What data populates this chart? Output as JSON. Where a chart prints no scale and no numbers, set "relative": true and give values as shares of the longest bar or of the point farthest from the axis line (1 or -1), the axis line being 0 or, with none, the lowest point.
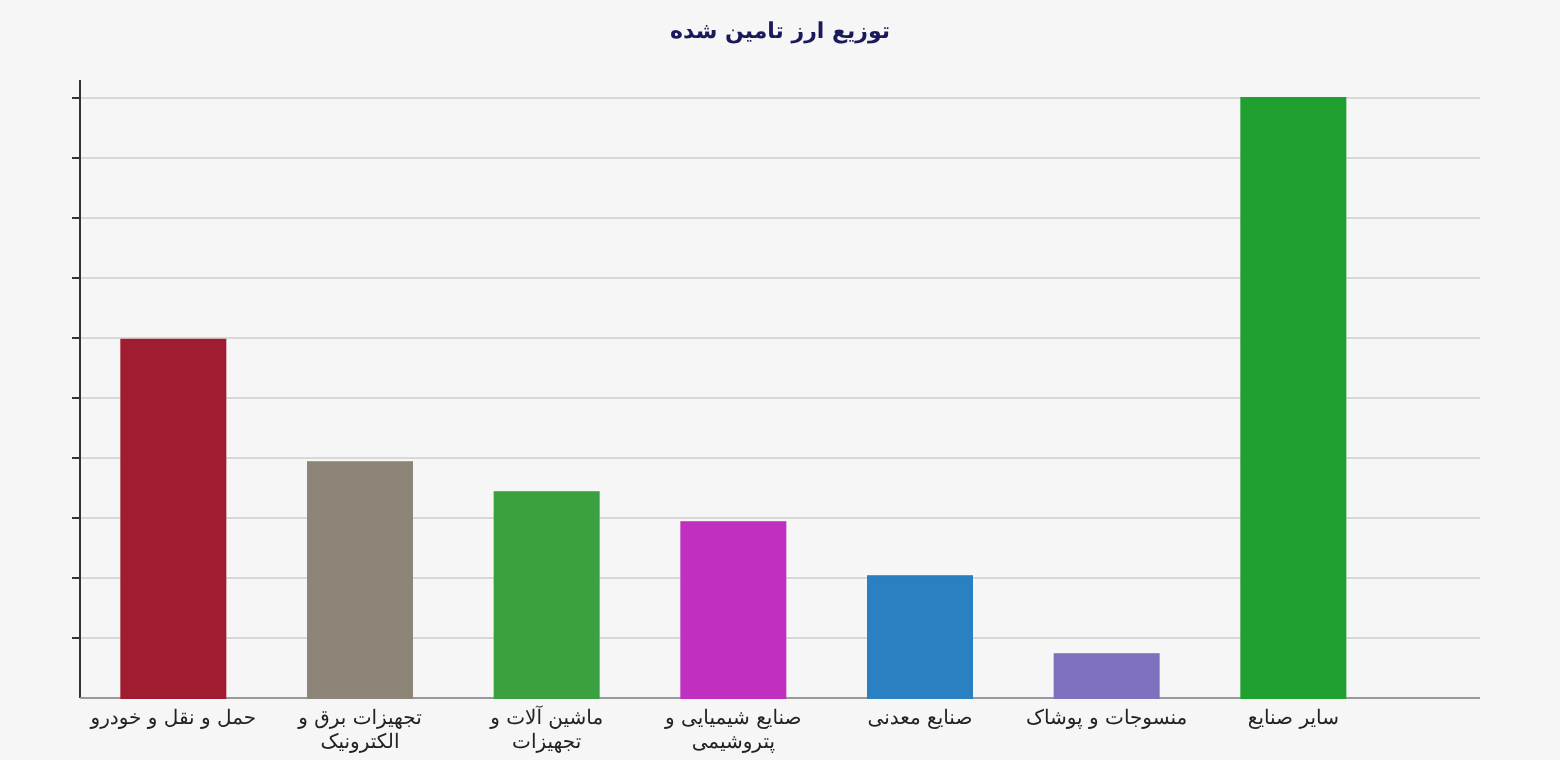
{
  "chart_data": {
    "type": "bar",
    "title": "توزیع ارز تامین شده",
    "relative": true,
    "grid": "y",
    "categories": [
      "حمل و نقل و خودرو",
      "تجهیزات برق و الکترونیک",
      "ماشین آلات و تجهیزات",
      "صنایع شیمیایی و پتروشیمی",
      "صنایع معدنی",
      "منسوجات و پوشاک",
      "سایر صنایع"
    ],
    "values": [
      0.597,
      0.393,
      0.343,
      0.293,
      0.203,
      0.073,
      1
    ],
    "colors": [
      "#a01c30",
      "#8c8578",
      "#3aa040",
      "#c030c0",
      "#2a80c0",
      "#8070c0",
      "#20a030"
    ]
  }
}
